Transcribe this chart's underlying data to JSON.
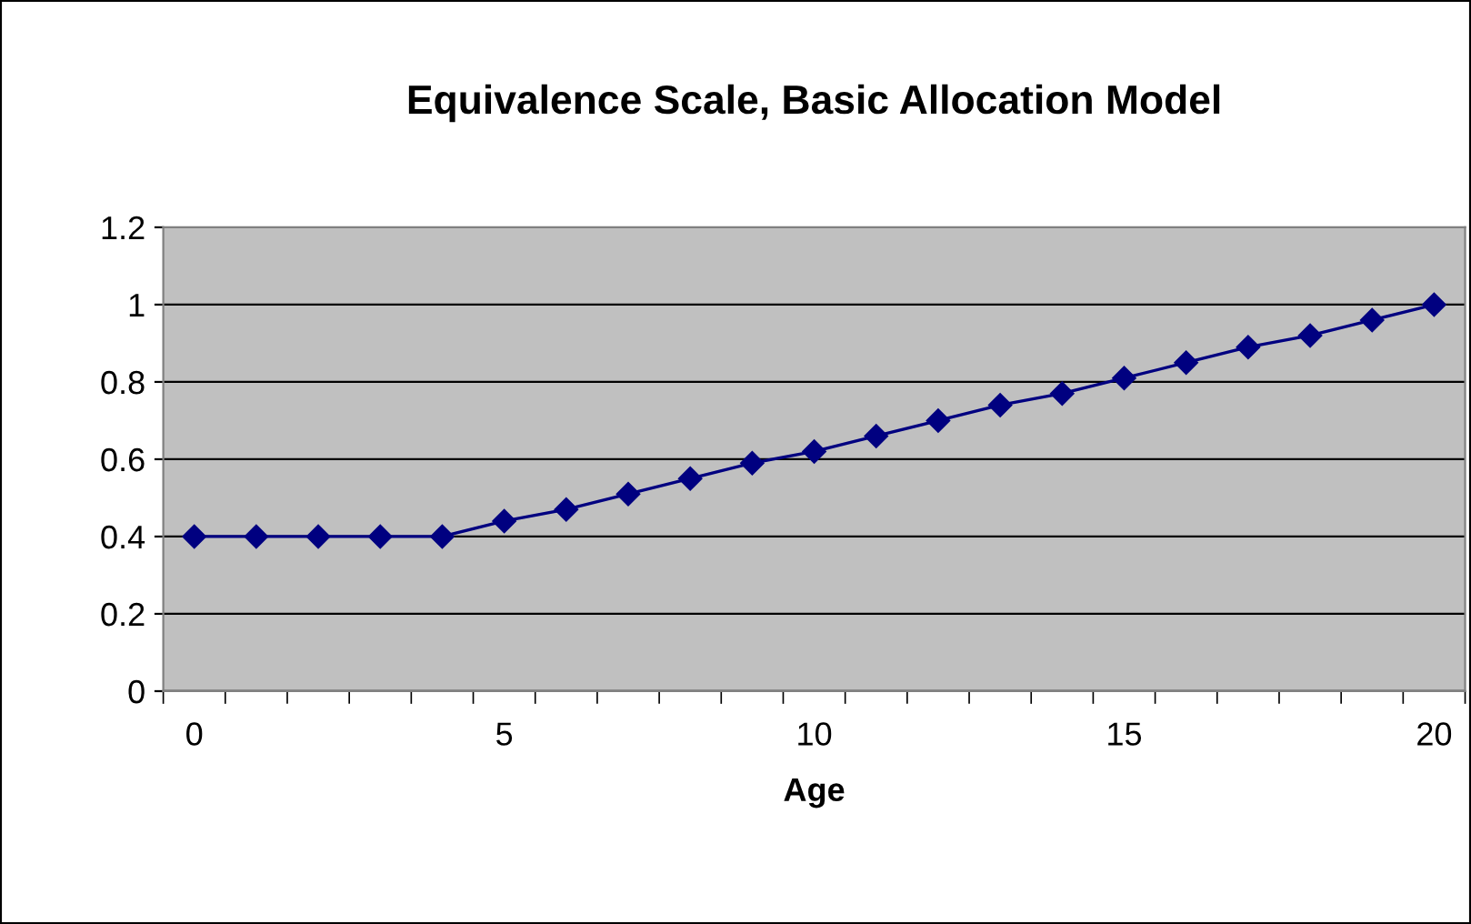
{
  "chart_data": {
    "type": "line",
    "title": "Equivalence Scale, Basic Allocation Model",
    "xlabel": "Age",
    "categories": [
      "0",
      null,
      null,
      null,
      null,
      "5",
      null,
      null,
      null,
      null,
      "10",
      null,
      null,
      null,
      null,
      "15",
      null,
      null,
      null,
      null,
      "20"
    ],
    "series": [
      {
        "color": "#000080",
        "values": [
          0.4,
          0.4,
          0.4,
          0.4,
          0.4,
          0.44,
          0.47,
          0.51,
          0.55,
          0.59,
          0.62,
          0.66,
          0.7,
          0.74,
          0.77,
          0.81,
          0.85,
          0.89,
          0.92,
          0.96,
          1.0
        ]
      }
    ],
    "ylim": [
      0,
      1.2
    ],
    "yticks": [
      0,
      0.2,
      0.4,
      0.6,
      0.8,
      1,
      1.2
    ],
    "grid": "y",
    "marker": "diamond",
    "line_style": "solid",
    "legend": false
  }
}
